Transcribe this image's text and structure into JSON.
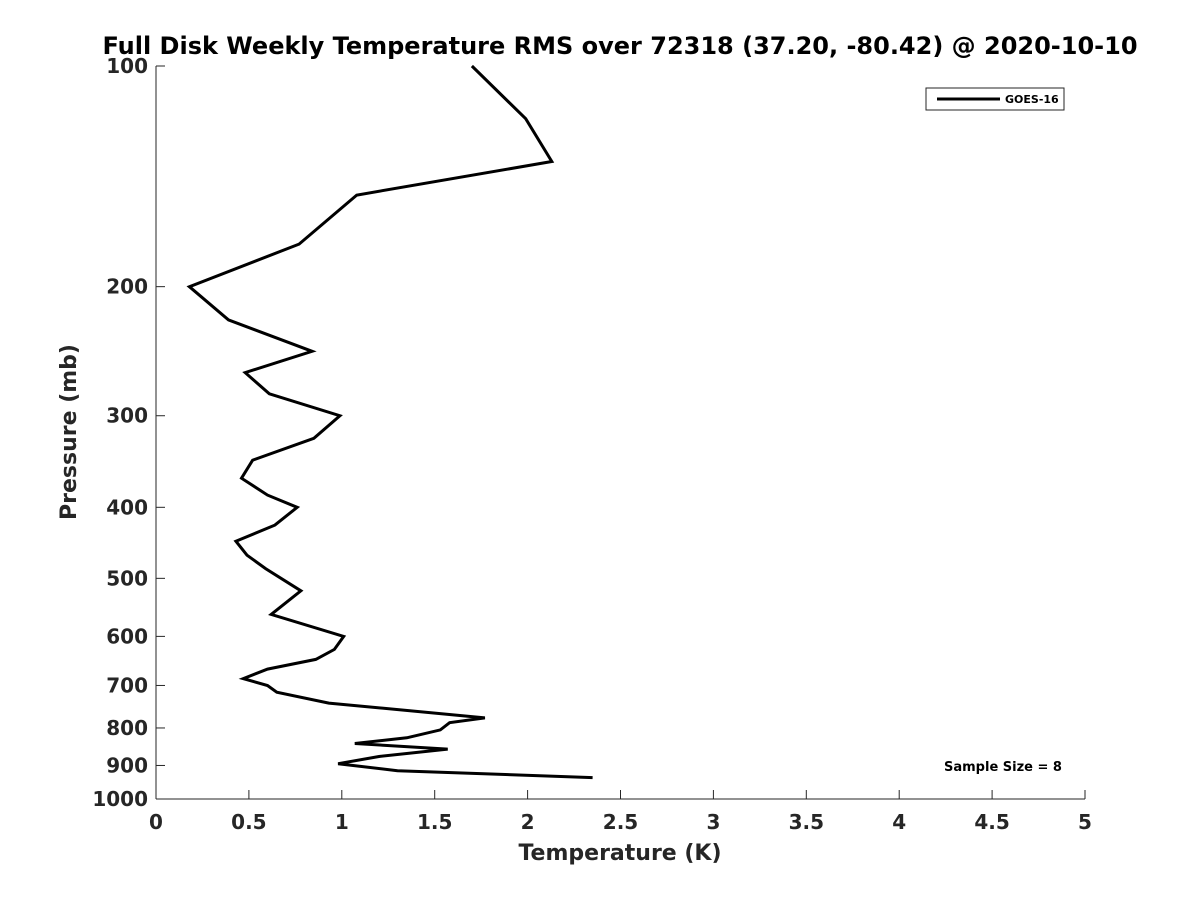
{
  "chart_data": {
    "type": "line",
    "title": "Full Disk Weekly Temperature RMS over 72318 (37.20, -80.42) @ 2020-10-10",
    "xlabel": "Temperature (K)",
    "ylabel": "Pressure (mb)",
    "xlim": [
      0,
      5
    ],
    "ylim": [
      100,
      1000
    ],
    "y_scale": "log",
    "y_reversed": true,
    "x_ticks": [
      0,
      0.5,
      1,
      1.5,
      2,
      2.5,
      3,
      3.5,
      4,
      4.5,
      5
    ],
    "x_tick_labels": [
      "0",
      "0.5",
      "1",
      "1.5",
      "2",
      "2.5",
      "3",
      "3.5",
      "4",
      "4.5",
      "5"
    ],
    "y_ticks": [
      100,
      200,
      300,
      400,
      500,
      600,
      700,
      800,
      900,
      1000
    ],
    "y_tick_labels": [
      "100",
      "200",
      "300",
      "400",
      "500",
      "600",
      "700",
      "800",
      "900",
      "1000"
    ],
    "grid": false,
    "legend_position": "top-right",
    "annotation": "Sample Size = 8",
    "series": [
      {
        "name": "GOES-16",
        "color": "#000000",
        "points": [
          [
            1.7,
            100
          ],
          [
            1.99,
            118
          ],
          [
            2.13,
            135
          ],
          [
            1.08,
            150
          ],
          [
            0.77,
            175
          ],
          [
            0.18,
            200
          ],
          [
            0.39,
            222
          ],
          [
            0.84,
            245
          ],
          [
            0.48,
            262
          ],
          [
            0.61,
            280
          ],
          [
            0.99,
            300
          ],
          [
            0.85,
            322
          ],
          [
            0.52,
            345
          ],
          [
            0.46,
            365
          ],
          [
            0.6,
            385
          ],
          [
            0.76,
            400
          ],
          [
            0.64,
            423
          ],
          [
            0.43,
            445
          ],
          [
            0.49,
            465
          ],
          [
            0.59,
            485
          ],
          [
            0.78,
            520
          ],
          [
            0.62,
            560
          ],
          [
            1.01,
            600
          ],
          [
            0.96,
            625
          ],
          [
            0.86,
            645
          ],
          [
            0.6,
            665
          ],
          [
            0.47,
            685
          ],
          [
            0.6,
            700
          ],
          [
            0.65,
            715
          ],
          [
            0.93,
            740
          ],
          [
            1.77,
            775
          ],
          [
            1.58,
            787
          ],
          [
            1.53,
            805
          ],
          [
            1.35,
            825
          ],
          [
            1.07,
            840
          ],
          [
            1.57,
            855
          ],
          [
            1.2,
            875
          ],
          [
            0.98,
            895
          ],
          [
            1.3,
            915
          ],
          [
            2.35,
            935
          ]
        ]
      }
    ]
  }
}
